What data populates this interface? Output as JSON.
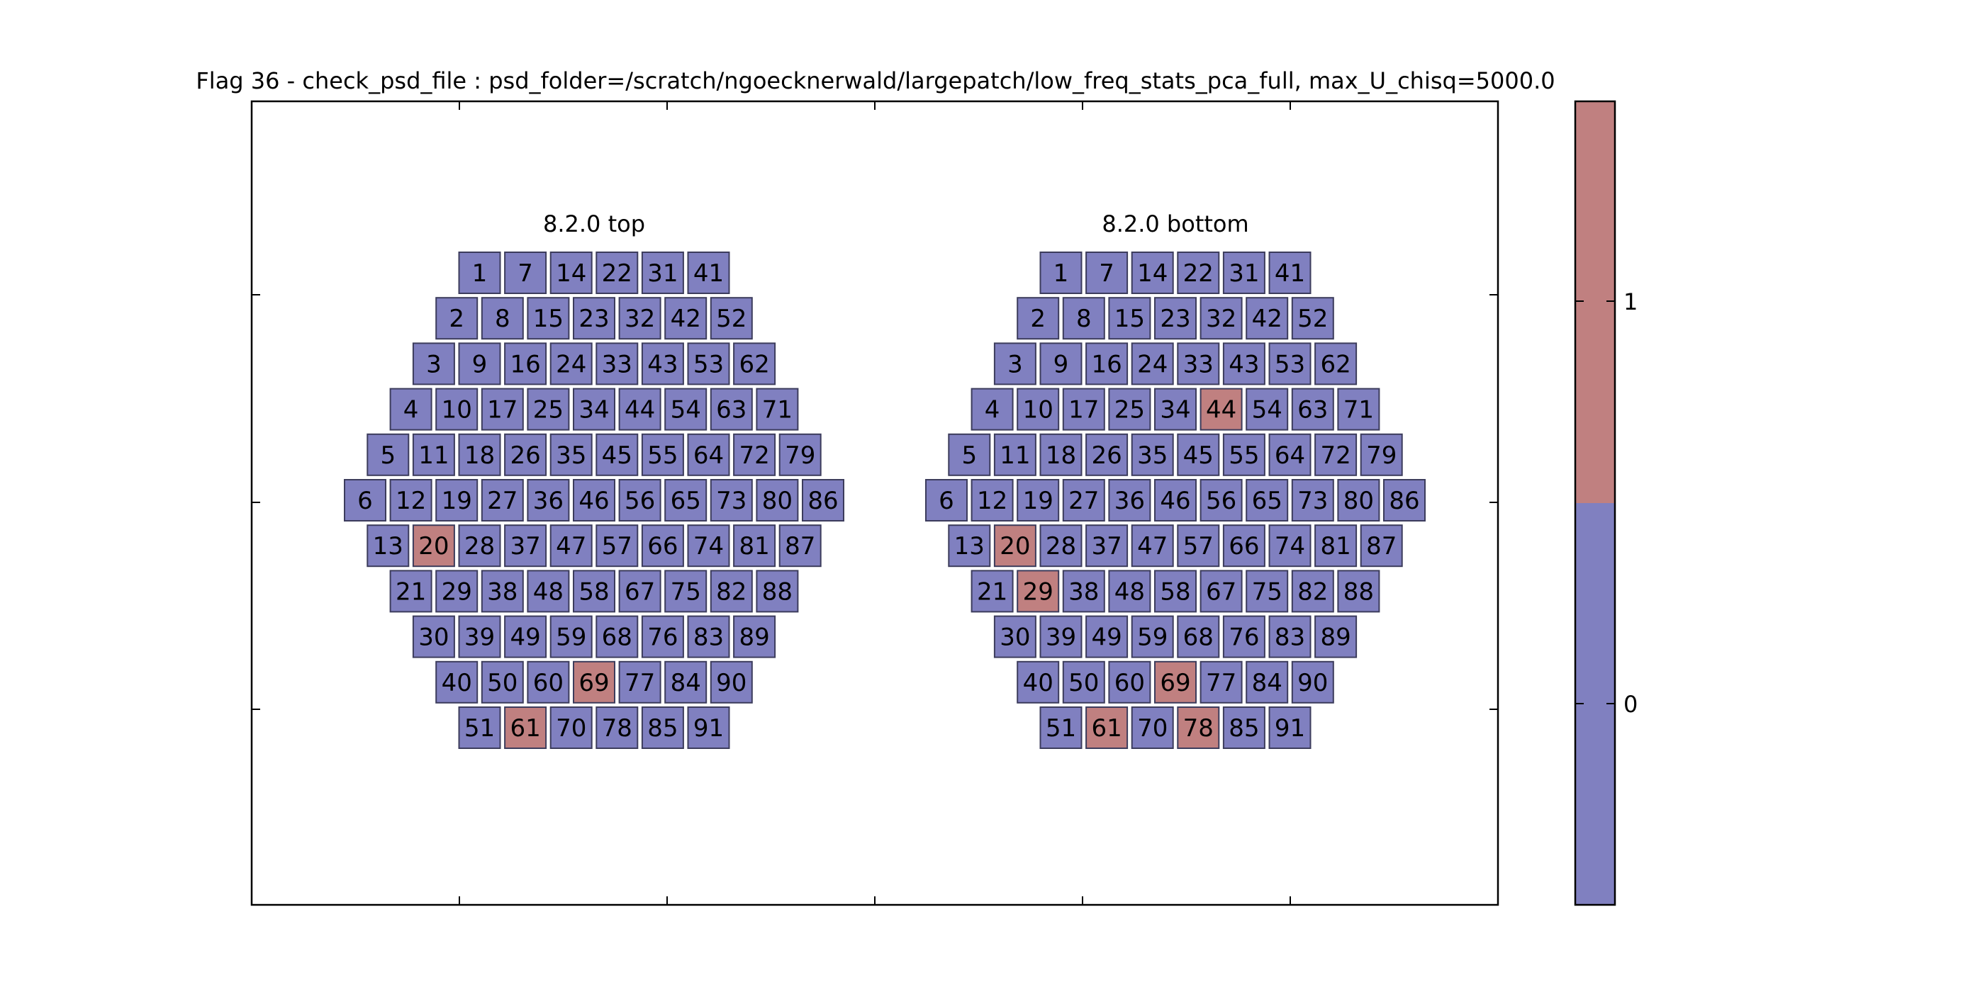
{
  "chart_data": {
    "type": "heatmap",
    "title": "Flag 36 - check_psd_file : psd_folder=/scratch/ngoecknerwald/largepatch/low_freq_stats_pca_full, max_U_chisq=5000.0",
    "colors": {
      "0": "#8080c0",
      "1": "#c08080"
    },
    "colorbar": {
      "ticks": [
        "0",
        "1"
      ],
      "position": "right"
    },
    "grid": false,
    "rows": [
      [
        1,
        7,
        14,
        22,
        31,
        41
      ],
      [
        2,
        8,
        15,
        23,
        32,
        42,
        52
      ],
      [
        3,
        9,
        16,
        24,
        33,
        43,
        53,
        62
      ],
      [
        4,
        10,
        17,
        25,
        34,
        44,
        54,
        63,
        71
      ],
      [
        5,
        11,
        18,
        26,
        35,
        45,
        55,
        64,
        72,
        79
      ],
      [
        6,
        12,
        19,
        27,
        36,
        46,
        56,
        65,
        73,
        80,
        86
      ],
      [
        13,
        20,
        28,
        37,
        47,
        57,
        66,
        74,
        81,
        87
      ],
      [
        21,
        29,
        38,
        48,
        58,
        67,
        75,
        82,
        88
      ],
      [
        30,
        39,
        49,
        59,
        68,
        76,
        83,
        89
      ],
      [
        40,
        50,
        60,
        69,
        77,
        84,
        90
      ],
      [
        51,
        61,
        70,
        78,
        85,
        91
      ]
    ],
    "panels": [
      {
        "name": "8.2.0 top",
        "flagged": [
          20,
          61,
          69
        ]
      },
      {
        "name": "8.2.0 bottom",
        "flagged": [
          20,
          29,
          44,
          61,
          69,
          78
        ]
      }
    ]
  }
}
